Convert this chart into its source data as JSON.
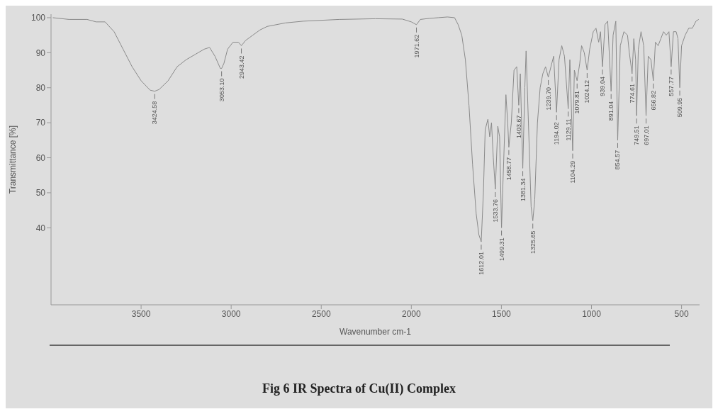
{
  "chart_data": {
    "type": "line",
    "title": "Fig 6 IR Spectra of Cu(II) Complex",
    "xlabel": "Wavenumber cm-1",
    "ylabel": "Transmittance [%]",
    "xlim": [
      4000,
      400
    ],
    "xticks": [
      3500,
      3000,
      2500,
      2000,
      1500,
      1000,
      500
    ],
    "ylim": [
      18,
      101
    ],
    "yticks": [
      40,
      50,
      60,
      70,
      80,
      90,
      100
    ],
    "series": [
      {
        "color": "#8a8a8a",
        "x": [
          3990,
          3900,
          3800,
          3750,
          3700,
          3650,
          3600,
          3550,
          3500,
          3450,
          3424.58,
          3400,
          3350,
          3300,
          3250,
          3200,
          3150,
          3120,
          3090,
          3060,
          3053.1,
          3040,
          3020,
          2990,
          2960,
          2943.42,
          2920,
          2880,
          2840,
          2800,
          2700,
          2600,
          2400,
          2200,
          2050,
          2000,
          1971.62,
          1950,
          1900,
          1850,
          1800,
          1760,
          1740,
          1720,
          1700,
          1680,
          1660,
          1640,
          1625,
          1612.01,
          1600,
          1590,
          1575,
          1565,
          1555,
          1545,
          1533.76,
          1520,
          1510,
          1499.31,
          1490,
          1475,
          1465,
          1458.77,
          1445,
          1430,
          1415,
          1403.67,
          1395,
          1381.34,
          1370,
          1363,
          1350,
          1335,
          1325.65,
          1315,
          1300,
          1285,
          1270,
          1255,
          1239.7,
          1225,
          1210,
          1194.02,
          1180,
          1165,
          1150,
          1129.11,
          1120,
          1104.29,
          1095,
          1079.81,
          1065,
          1055,
          1040,
          1024.12,
          1010,
          990,
          975,
          960,
          950,
          939.04,
          925,
          910,
          891.04,
          880,
          865,
          854.57,
          840,
          820,
          800,
          790,
          774.61,
          765,
          755,
          749.51,
          740,
          725,
          710,
          697.01,
          685,
          670,
          656.82,
          645,
          630,
          615,
          600,
          585,
          570,
          557.77,
          545,
          530,
          520,
          509.95,
          500,
          480,
          460,
          440,
          420,
          405
        ],
        "values": [
          100,
          99.5,
          99.5,
          98.8,
          98.8,
          96,
          91,
          86,
          82,
          79.3,
          79,
          79.5,
          82,
          86,
          88,
          89.5,
          91,
          91.5,
          89,
          85.5,
          85.5,
          87,
          91,
          93,
          93,
          92,
          93.5,
          95,
          96.5,
          97.5,
          98.5,
          99,
          99.5,
          99.7,
          99.6,
          98.8,
          98,
          99.5,
          99.8,
          100,
          100.2,
          100,
          98,
          95,
          88,
          75,
          58,
          44,
          38,
          36,
          50,
          68,
          71,
          66,
          70,
          60,
          51,
          69,
          66,
          40,
          55,
          78,
          70,
          63,
          70,
          85,
          86,
          75,
          84,
          57,
          80,
          90.5,
          70,
          46,
          42,
          48,
          70,
          80,
          84,
          86,
          83,
          86,
          89,
          73,
          88,
          92,
          89,
          74,
          88,
          62,
          85,
          82,
          87,
          92,
          90,
          85,
          91,
          96,
          97,
          93,
          96,
          86,
          98,
          99,
          79,
          95,
          99,
          65,
          92,
          96,
          95,
          90,
          84,
          94,
          88,
          72,
          91,
          96,
          92,
          72,
          89,
          88,
          82,
          93,
          92,
          94,
          96,
          95,
          96,
          86,
          96,
          96,
          94,
          80,
          92,
          95,
          97,
          97,
          99,
          99.5
        ]
      }
    ],
    "annotations": [
      {
        "text": "3424.58",
        "x": 3424.58,
        "y": 79
      },
      {
        "text": "3053.10",
        "x": 3053.1,
        "y": 85.5
      },
      {
        "text": "2943.42",
        "x": 2943.42,
        "y": 92
      },
      {
        "text": "1971.62",
        "x": 1971.62,
        "y": 98
      },
      {
        "text": "1612.01",
        "x": 1612.01,
        "y": 36
      },
      {
        "text": "1533.76",
        "x": 1533.76,
        "y": 51
      },
      {
        "text": "1499.31",
        "x": 1499.31,
        "y": 40
      },
      {
        "text": "1458.77",
        "x": 1458.77,
        "y": 63
      },
      {
        "text": "1403.67",
        "x": 1403.67,
        "y": 75
      },
      {
        "text": "1381.34",
        "x": 1381.34,
        "y": 57
      },
      {
        "text": "1325.65",
        "x": 1325.65,
        "y": 42
      },
      {
        "text": "1239.70",
        "x": 1239.7,
        "y": 83
      },
      {
        "text": "1194.02",
        "x": 1194.02,
        "y": 73
      },
      {
        "text": "1129.11",
        "x": 1129.11,
        "y": 74
      },
      {
        "text": "1104.29",
        "x": 1104.29,
        "y": 62
      },
      {
        "text": "1079.81",
        "x": 1079.81,
        "y": 82
      },
      {
        "text": "1024.12",
        "x": 1024.12,
        "y": 85
      },
      {
        "text": "939.04",
        "x": 939.04,
        "y": 86
      },
      {
        "text": "891.04",
        "x": 891.04,
        "y": 79
      },
      {
        "text": "854.57",
        "x": 854.57,
        "y": 65
      },
      {
        "text": "774.61",
        "x": 774.61,
        "y": 84
      },
      {
        "text": "749.51",
        "x": 749.51,
        "y": 72
      },
      {
        "text": "697.01",
        "x": 697.01,
        "y": 72
      },
      {
        "text": "656.82",
        "x": 656.82,
        "y": 82
      },
      {
        "text": "557.77",
        "x": 557.77,
        "y": 86
      },
      {
        "text": "509.95",
        "x": 509.95,
        "y": 80
      }
    ]
  }
}
